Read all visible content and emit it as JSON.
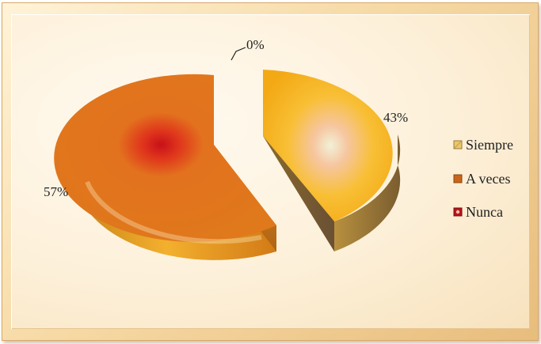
{
  "chart_data": {
    "type": "pie",
    "categories": [
      "Siempre",
      "A veces",
      "Nunca"
    ],
    "values": [
      43,
      57,
      0
    ],
    "labels": [
      "43%",
      "57%",
      "0%"
    ],
    "title": "",
    "legend_position": "right",
    "colors": {
      "Siempre": "#f6c24a",
      "A veces": "#e2781c",
      "Nunca": "#c0141a"
    }
  }
}
